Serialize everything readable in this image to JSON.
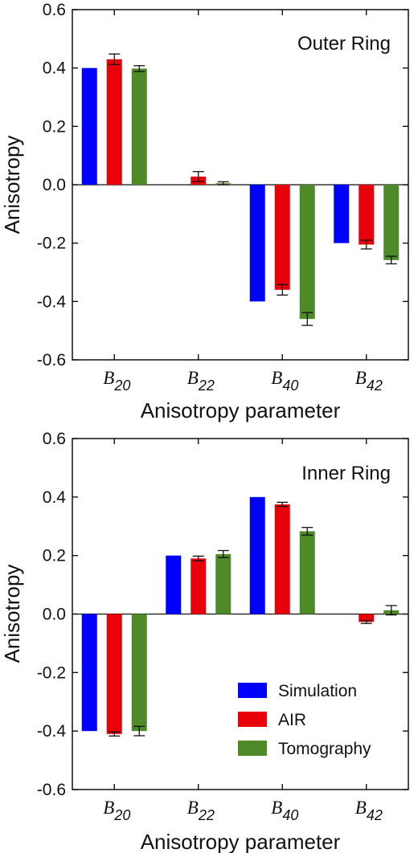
{
  "chart_data": [
    {
      "type": "bar",
      "title": "Outer Ring",
      "xlabel": "Anisotropy parameter",
      "ylabel": "Anisotropy",
      "ylim": [
        -0.6,
        0.6
      ],
      "yticks": [
        "-0.6",
        "-0.4",
        "-0.2",
        "0.0",
        "0.2",
        "0.4",
        "0.6"
      ],
      "categories": [
        {
          "main": "B",
          "sub": "20"
        },
        {
          "main": "B",
          "sub": "22"
        },
        {
          "main": "B",
          "sub": "40"
        },
        {
          "main": "B",
          "sub": "42"
        }
      ],
      "series": [
        {
          "name": "Simulation",
          "color": "#0000ff",
          "values": [
            0.4,
            0.0,
            -0.4,
            -0.2
          ],
          "errors": [
            null,
            null,
            null,
            null
          ]
        },
        {
          "name": "AIR",
          "color": "#e8000b",
          "values": [
            0.43,
            0.028,
            -0.36,
            -0.205
          ],
          "errors": [
            0.018,
            0.017,
            0.018,
            0.015
          ]
        },
        {
          "name": "Tomography",
          "color": "#4e8a28",
          "values": [
            0.398,
            0.005,
            -0.46,
            -0.258
          ],
          "errors": [
            0.01,
            0.005,
            0.022,
            0.013
          ]
        }
      ],
      "legend": "none"
    },
    {
      "type": "bar",
      "title": "Inner Ring",
      "xlabel": "Anisotropy parameter",
      "ylabel": "Anisotropy",
      "ylim": [
        -0.6,
        0.6
      ],
      "yticks": [
        "-0.6",
        "-0.4",
        "-0.2",
        "0.0",
        "0.2",
        "0.4",
        "0.6"
      ],
      "categories": [
        {
          "main": "B",
          "sub": "20"
        },
        {
          "main": "B",
          "sub": "22"
        },
        {
          "main": "B",
          "sub": "40"
        },
        {
          "main": "B",
          "sub": "42"
        }
      ],
      "series": [
        {
          "name": "Simulation",
          "color": "#0000ff",
          "values": [
            -0.4,
            0.2,
            0.4,
            0.0
          ],
          "errors": [
            null,
            null,
            null,
            null
          ]
        },
        {
          "name": "AIR",
          "color": "#e8000b",
          "values": [
            -0.41,
            0.19,
            0.375,
            -0.027
          ],
          "errors": [
            0.007,
            0.008,
            0.007,
            0.005
          ]
        },
        {
          "name": "Tomography",
          "color": "#4e8a28",
          "values": [
            -0.4,
            0.205,
            0.283,
            0.013
          ],
          "errors": [
            0.016,
            0.012,
            0.013,
            0.016
          ]
        }
      ],
      "legend": "lower-right"
    }
  ]
}
